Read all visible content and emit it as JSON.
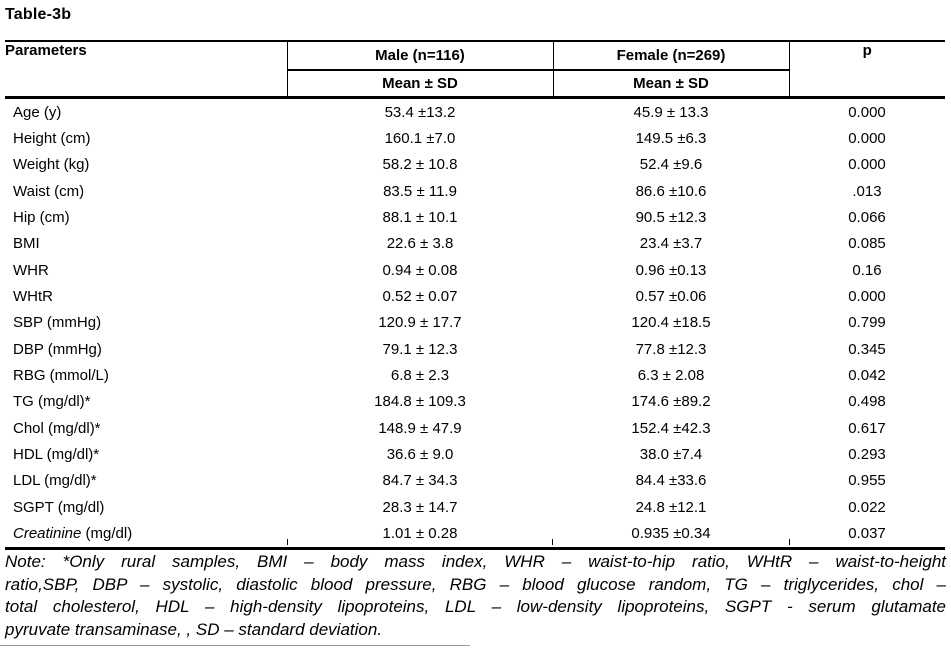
{
  "title": "Table-3b",
  "table": {
    "headers": {
      "parameters": "Parameters",
      "male": "Male (n=116)",
      "female": "Female (n=269)",
      "p": "p",
      "mean_sd": "Mean ± SD"
    },
    "rows": [
      {
        "label": "Age (y)",
        "male": "53.4 ±13.2",
        "female": "45.9 ± 13.3",
        "p": "0.000"
      },
      {
        "label": "Height (cm)",
        "male": "160.1 ±7.0",
        "female": "149.5 ±6.3",
        "p": "0.000"
      },
      {
        "label": "Weight (kg)",
        "male": "58.2 ± 10.8",
        "female": "52.4 ±9.6",
        "p": "0.000"
      },
      {
        "label": "Waist (cm)",
        "male": "83.5 ± 11.9",
        "female": "86.6 ±10.6",
        "p": ".013"
      },
      {
        "label": "Hip (cm)",
        "male": "88.1 ± 10.1",
        "female": "90.5 ±12.3",
        "p": "0.066"
      },
      {
        "label": "BMI",
        "male": "22.6 ± 3.8",
        "female": "23.4 ±3.7",
        "p": "0.085"
      },
      {
        "label": "WHR",
        "male": "0.94 ± 0.08",
        "female": "0.96 ±0.13",
        "p": "0.16"
      },
      {
        "label": "WHtR",
        "male": "0.52 ± 0.07",
        "female": "0.57 ±0.06",
        "p": "0.000"
      },
      {
        "label": "SBP (mmHg)",
        "male": "120.9 ± 17.7",
        "female": "120.4 ±18.5",
        "p": "0.799"
      },
      {
        "label": "DBP (mmHg)",
        "male": "79.1 ± 12.3",
        "female": "77.8 ±12.3",
        "p": "0.345"
      },
      {
        "label": "RBG (mmol/L)",
        "male": "6.8 ± 2.3",
        "female": "6.3 ± 2.08",
        "p": "0.042"
      },
      {
        "label": "TG (mg/dl)*",
        "male": "184.8 ± 109.3",
        "female": "174.6 ±89.2",
        "p": "0.498"
      },
      {
        "label": "Chol (mg/dl)*",
        "male": "148.9 ± 47.9",
        "female": "152.4 ±42.3",
        "p": "0.617"
      },
      {
        "label": "HDL (mg/dl)*",
        "male": "36.6 ± 9.0",
        "female": "38.0 ±7.4",
        "p": "0.293"
      },
      {
        "label": "LDL (mg/dl)*",
        "male": "84.7 ± 34.3",
        "female": "84.4 ±33.6",
        "p": "0.955"
      },
      {
        "label": "SGPT (mg/dl)",
        "male": "28.3 ± 14.7",
        "female": "24.8 ±12.1",
        "p": "0.022"
      },
      {
        "label_italic": "Creatinine",
        "label": " (mg/dl)",
        "male": "1.01 ± 0.28",
        "female": "0.935 ±0.34",
        "p": "0.037"
      }
    ]
  },
  "note_lines": [
    "Note: *Only rural samples, BMI – body mass index, WHR – waist-to-hip ratio, WHtR – waist-to-height",
    "ratio,SBP, DBP – systolic, diastolic blood pressure, RBG – blood glucose random, TG – triglycerides, chol –",
    "total cholesterol, HDL – high-density lipoproteins, LDL – low-density lipoproteins, SGPT - serum glutamate",
    "pyruvate transaminase, , SD – standard deviation."
  ],
  "colors": {
    "text": "#000000",
    "background": "#ffffff",
    "border": "#000000"
  }
}
